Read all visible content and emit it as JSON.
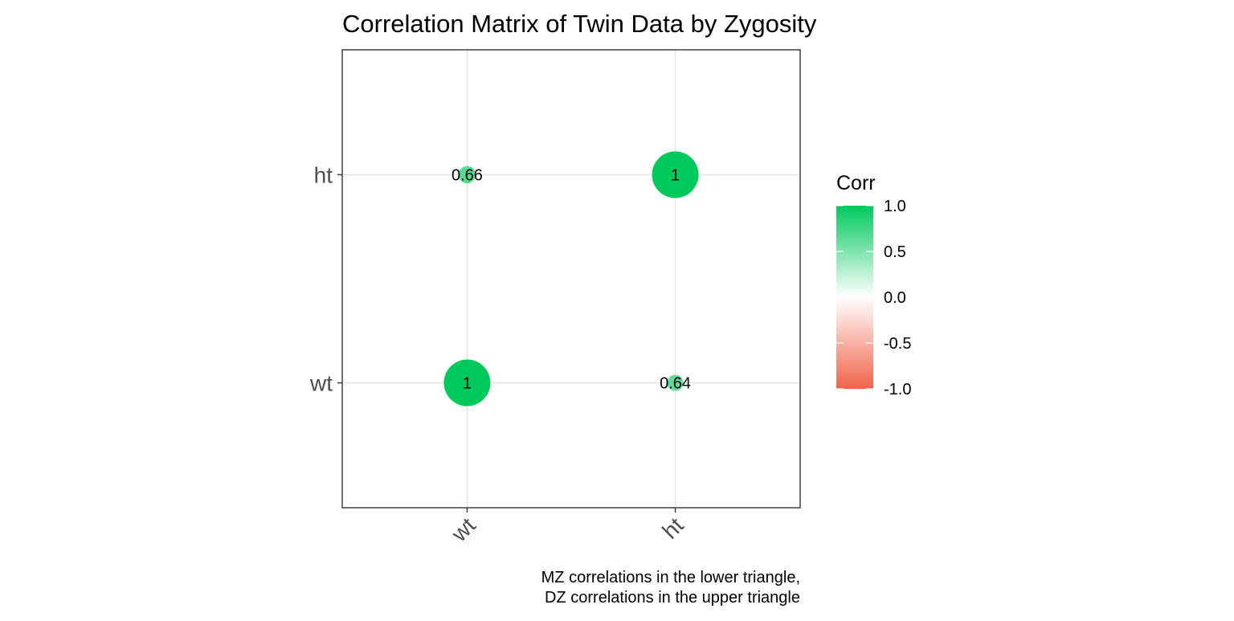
{
  "chart_data": {
    "type": "scatter",
    "title": "Correlation Matrix of Twin Data by Zygosity",
    "x_categories": [
      "wt",
      "ht"
    ],
    "y_categories": [
      "wt",
      "ht"
    ],
    "points": [
      {
        "x": "wt",
        "y": "wt",
        "value": 1,
        "label": "1"
      },
      {
        "x": "ht",
        "y": "wt",
        "value": 0.64,
        "label": "0.64"
      },
      {
        "x": "wt",
        "y": "ht",
        "value": 0.66,
        "label": "0.66"
      },
      {
        "x": "ht",
        "y": "ht",
        "value": 1,
        "label": "1"
      }
    ],
    "legend": {
      "title": "Corr",
      "position": "right",
      "ticks": [
        "1.0",
        "0.5",
        "0.0",
        "-0.5",
        "-1.0"
      ],
      "tick_values": [
        1.0,
        0.5,
        0.0,
        -0.5,
        -1.0
      ],
      "range": [
        -1,
        1
      ],
      "low_color": "#f26349",
      "mid_color": "#ffffff",
      "high_color": "#00c95c"
    },
    "caption_lines": [
      "MZ correlations in the lower triangle,",
      "DZ correlations in the upper triangle"
    ],
    "grid": true,
    "x_tick_rotation": "45°"
  }
}
